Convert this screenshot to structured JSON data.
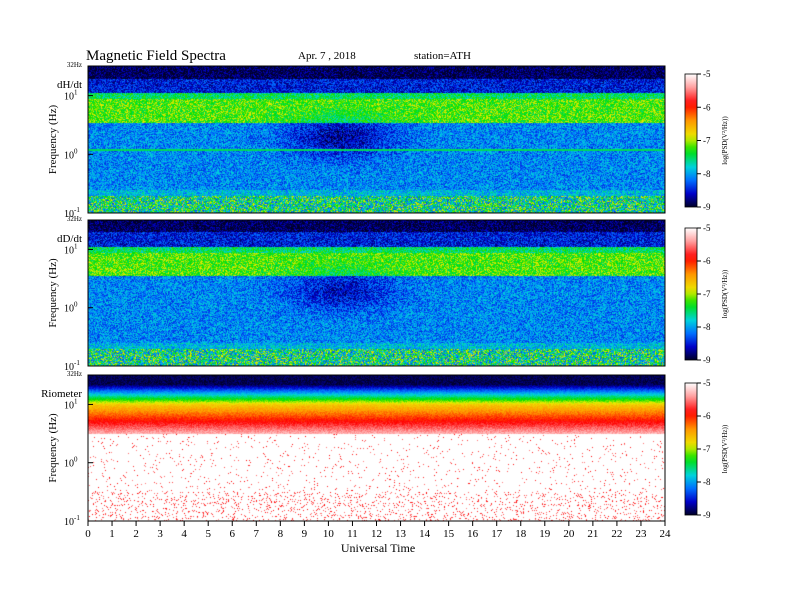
{
  "header": {
    "title": "Magnetic  Field  Spectra",
    "date": "Apr. 7  , 2018",
    "station": "station=ATH"
  },
  "colorbar": {
    "label": "log(PSD(V²/Hz))",
    "ticks": [
      "-5",
      "-6",
      "-7",
      "-8",
      "-9"
    ],
    "colors": [
      "#ffffff",
      "#ff0000",
      "#ffa000",
      "#f0f000",
      "#00e000",
      "#00d8d8",
      "#0070ff",
      "#0000d0",
      "#000030"
    ]
  },
  "axes": {
    "ylabel": "Frequency  (Hz)",
    "xlabel": "Universal  Time",
    "y_top_label": "32Hz",
    "y_ticks": [
      {
        "base": "10",
        "exp": "1",
        "value": 10
      },
      {
        "base": "10",
        "exp": "0",
        "value": 1
      },
      {
        "base": "10",
        "exp": "-1",
        "value": 0.1
      }
    ],
    "x_ticks": [
      "0",
      "1",
      "2",
      "3",
      "4",
      "5",
      "6",
      "7",
      "8",
      "9",
      "10",
      "11",
      "12",
      "13",
      "14",
      "15",
      "16",
      "17",
      "18",
      "19",
      "20",
      "21",
      "22",
      "23",
      "24"
    ]
  },
  "chart_data": [
    {
      "type": "heatmap",
      "panel_label": "dH/dt",
      "x_range_hours": [
        0,
        24
      ],
      "y_range_hz": [
        0.1,
        32
      ],
      "y_scale": "log",
      "color_range_log_psd": [
        -9,
        -5
      ],
      "description_levels": "quiet background near -8 to -9; 1-10 Hz band near -7; strong line near 1 Hz"
    },
    {
      "type": "heatmap",
      "panel_label": "dD/dt",
      "x_range_hours": [
        0,
        24
      ],
      "y_range_hz": [
        0.1,
        32
      ],
      "y_scale": "log",
      "color_range_log_psd": [
        -9,
        -5
      ]
    },
    {
      "type": "heatmap",
      "panel_label": "Riometer",
      "x_range_hours": [
        0,
        24
      ],
      "y_range_hz": [
        0.1,
        32
      ],
      "y_scale": "log",
      "color_range_log_psd": [
        -9,
        -5
      ]
    }
  ]
}
